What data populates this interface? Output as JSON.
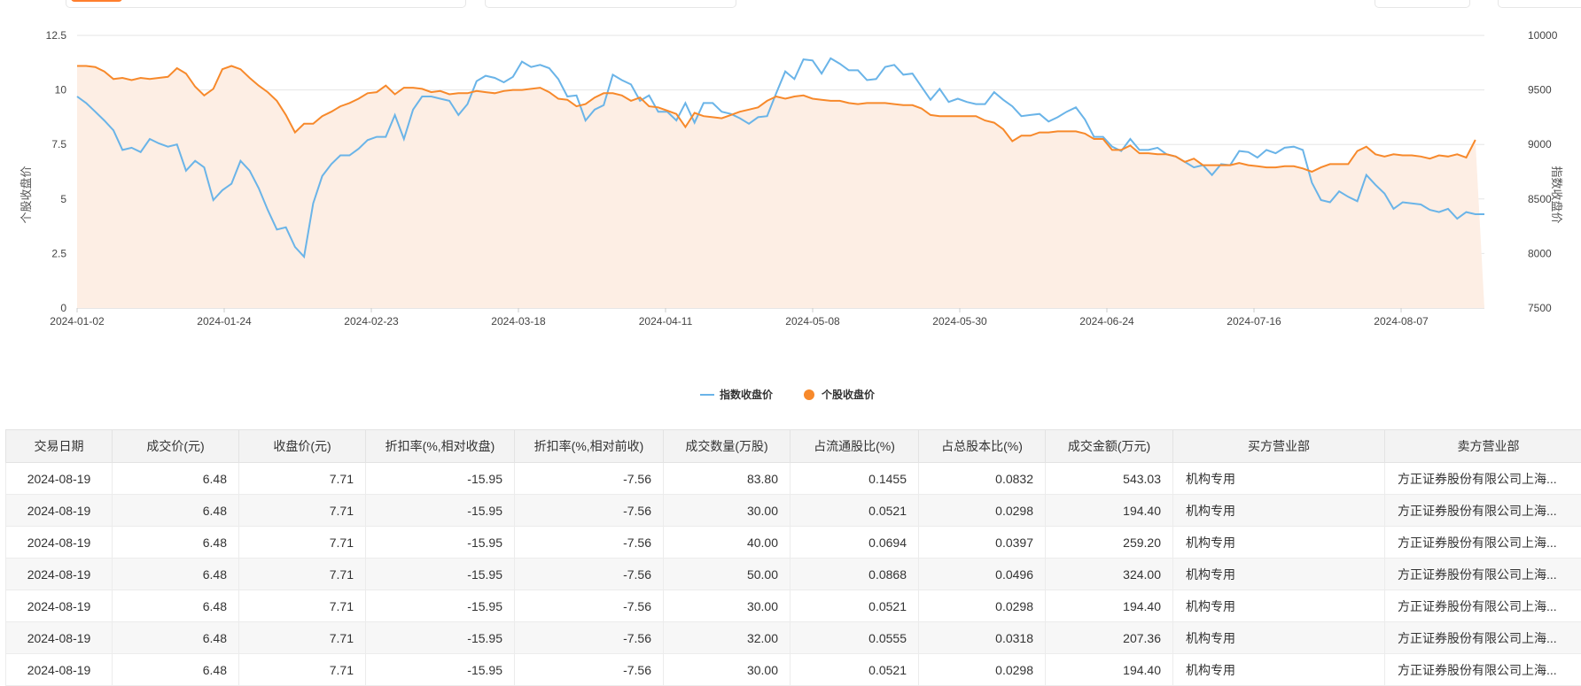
{
  "chart_data": {
    "type": "line",
    "x_ticks": [
      "2024-01-02",
      "2024-01-24",
      "2024-02-23",
      "2024-03-18",
      "2024-04-11",
      "2024-05-08",
      "2024-05-30",
      "2024-06-24",
      "2024-07-16",
      "2024-08-07"
    ],
    "left_axis": {
      "label": "个股收盘价",
      "ticks": [
        "0",
        "2.5",
        "5",
        "7.5",
        "10",
        "12.5"
      ],
      "range": [
        0,
        12.5
      ]
    },
    "right_axis": {
      "label": "指数收盘价",
      "ticks": [
        "7500",
        "8000",
        "8500",
        "9000",
        "9500",
        "10000"
      ],
      "range": [
        7500,
        10000
      ]
    },
    "series": [
      {
        "name": "指数收盘价",
        "axis": "right",
        "color": "#6ab4e8",
        "values": [
          9440,
          9380,
          9300,
          9220,
          9130,
          8950,
          8970,
          8930,
          9050,
          9010,
          8980,
          9000,
          8760,
          8850,
          8790,
          8490,
          8580,
          8640,
          8850,
          8760,
          8600,
          8400,
          8220,
          8240,
          8060,
          7970,
          8460,
          8710,
          8820,
          8900,
          8900,
          8960,
          9040,
          9070,
          9070,
          9270,
          9050,
          9320,
          9440,
          9440,
          9420,
          9400,
          9270,
          9370,
          9580,
          9630,
          9610,
          9570,
          9620,
          9760,
          9710,
          9730,
          9700,
          9600,
          9440,
          9450,
          9220,
          9320,
          9360,
          9640,
          9590,
          9550,
          9400,
          9450,
          9300,
          9300,
          9220,
          9380,
          9200,
          9380,
          9380,
          9300,
          9280,
          9240,
          9190,
          9250,
          9260,
          9470,
          9670,
          9600,
          9780,
          9770,
          9650,
          9790,
          9740,
          9680,
          9680,
          9590,
          9600,
          9710,
          9730,
          9640,
          9650,
          9530,
          9410,
          9510,
          9390,
          9420,
          9390,
          9370,
          9370,
          9480,
          9410,
          9350,
          9260,
          9270,
          9280,
          9210,
          9250,
          9300,
          9340,
          9230,
          9070,
          9070,
          8980,
          8940,
          9050,
          8950,
          8950,
          8970,
          8910,
          8890,
          8840,
          8790,
          8810,
          8720,
          8820,
          8810,
          8940,
          8930,
          8880,
          8950,
          8920,
          8970,
          8980,
          8950,
          8650,
          8490,
          8470,
          8570,
          8520,
          8480,
          8720,
          8630,
          8550,
          8410,
          8470,
          8460,
          8450,
          8400,
          8380,
          8410,
          8320,
          8380,
          8360,
          8360
        ]
      },
      {
        "name": "个股收盘价",
        "axis": "left",
        "color": "#f7892b",
        "values": [
          11.1,
          11.1,
          11.05,
          10.85,
          10.5,
          10.55,
          10.45,
          10.55,
          10.5,
          10.55,
          10.6,
          11.0,
          10.75,
          10.15,
          9.75,
          10.05,
          10.95,
          11.1,
          10.95,
          10.55,
          10.2,
          9.9,
          9.5,
          8.85,
          8.05,
          8.45,
          8.45,
          8.8,
          9.0,
          9.25,
          9.4,
          9.6,
          9.85,
          9.9,
          10.2,
          9.8,
          10.1,
          10.1,
          10.05,
          9.9,
          9.95,
          9.8,
          9.85,
          9.85,
          9.95,
          9.9,
          9.85,
          9.95,
          10.0,
          10.0,
          10.05,
          10.1,
          9.9,
          9.6,
          9.55,
          9.25,
          9.35,
          9.65,
          9.85,
          9.85,
          9.75,
          9.5,
          9.65,
          9.25,
          9.2,
          9.05,
          8.9,
          8.3,
          8.95,
          8.8,
          8.75,
          8.7,
          8.85,
          9.0,
          9.1,
          9.2,
          9.5,
          9.7,
          9.6,
          9.7,
          9.75,
          9.6,
          9.55,
          9.5,
          9.5,
          9.4,
          9.35,
          9.4,
          9.4,
          9.4,
          9.35,
          9.3,
          9.3,
          9.15,
          8.85,
          8.8,
          8.8,
          8.8,
          8.8,
          8.8,
          8.6,
          8.5,
          8.2,
          7.65,
          7.9,
          7.9,
          8.05,
          8.05,
          8.1,
          8.1,
          8.1,
          8.0,
          7.75,
          7.75,
          7.25,
          7.25,
          7.45,
          7.1,
          7.1,
          7.05,
          7.05,
          6.95,
          6.7,
          6.85,
          6.55,
          6.55,
          6.55,
          6.55,
          6.65,
          6.55,
          6.5,
          6.45,
          6.45,
          6.5,
          6.5,
          6.4,
          6.25,
          6.45,
          6.6,
          6.6,
          6.6,
          7.2,
          7.4,
          7.05,
          6.95,
          7.05,
          7.0,
          7.0,
          6.95,
          6.85,
          7.0,
          6.95,
          7.05,
          6.9,
          7.71
        ]
      }
    ]
  },
  "table": {
    "headers": [
      "交易日期",
      "成交价(元)",
      "收盘价(元)",
      "折扣率(%,相对收盘)",
      "折扣率(%,相对前收)",
      "成交数量(万股)",
      "占流通股比(%)",
      "占总股本比(%)",
      "成交金额(万元)",
      "买方营业部",
      "卖方营业部"
    ],
    "rows": [
      [
        "2024-08-19",
        "6.48",
        "7.71",
        "-15.95",
        "-7.56",
        "83.80",
        "0.1455",
        "0.0832",
        "543.03",
        "机构专用",
        "方正证券股份有限公司上海..."
      ],
      [
        "2024-08-19",
        "6.48",
        "7.71",
        "-15.95",
        "-7.56",
        "30.00",
        "0.0521",
        "0.0298",
        "194.40",
        "机构专用",
        "方正证券股份有限公司上海..."
      ],
      [
        "2024-08-19",
        "6.48",
        "7.71",
        "-15.95",
        "-7.56",
        "40.00",
        "0.0694",
        "0.0397",
        "259.20",
        "机构专用",
        "方正证券股份有限公司上海..."
      ],
      [
        "2024-08-19",
        "6.48",
        "7.71",
        "-15.95",
        "-7.56",
        "50.00",
        "0.0868",
        "0.0496",
        "324.00",
        "机构专用",
        "方正证券股份有限公司上海..."
      ],
      [
        "2024-08-19",
        "6.48",
        "7.71",
        "-15.95",
        "-7.56",
        "30.00",
        "0.0521",
        "0.0298",
        "194.40",
        "机构专用",
        "方正证券股份有限公司上海..."
      ],
      [
        "2024-08-19",
        "6.48",
        "7.71",
        "-15.95",
        "-7.56",
        "32.00",
        "0.0555",
        "0.0318",
        "207.36",
        "机构专用",
        "方正证券股份有限公司上海..."
      ],
      [
        "2024-08-19",
        "6.48",
        "7.71",
        "-15.95",
        "-7.56",
        "30.00",
        "0.0521",
        "0.0298",
        "194.40",
        "机构专用",
        "方正证券股份有限公司上海..."
      ]
    ]
  }
}
